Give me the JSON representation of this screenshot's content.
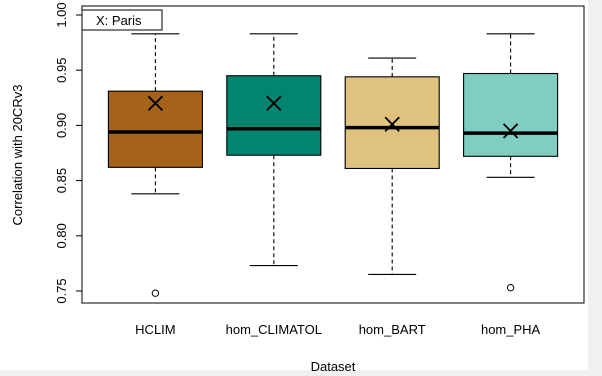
{
  "chart_data": {
    "type": "boxplot",
    "annotation": "X: Paris",
    "xlabel": "Dataset",
    "ylabel": "Correlation with 20CRv3",
    "ylim": [
      0.745,
      1.0
    ],
    "yticks": [
      0.75,
      0.8,
      0.85,
      0.9,
      0.95,
      1.0
    ],
    "ytick_labels": [
      "0.75",
      "0.80",
      "0.85",
      "0.90",
      "0.95",
      "1.00"
    ],
    "categories": [
      "HCLIM",
      "hom_CLIMATOL",
      "hom_BART",
      "hom_PHA"
    ],
    "colors": [
      "#A6611A",
      "#018571",
      "#DFC27D",
      "#80CDC1"
    ],
    "boxes": [
      {
        "label": "HCLIM",
        "whisker_low": 0.838,
        "q1": 0.862,
        "median": 0.894,
        "q3": 0.931,
        "whisker_high": 0.983,
        "outliers": [
          0.748
        ],
        "marker_x": 0.92
      },
      {
        "label": "hom_CLIMATOL",
        "whisker_low": 0.773,
        "q1": 0.873,
        "median": 0.897,
        "q3": 0.945,
        "whisker_high": 0.983,
        "outliers": [],
        "marker_x": 0.92
      },
      {
        "label": "hom_BART",
        "whisker_low": 0.765,
        "q1": 0.861,
        "median": 0.898,
        "q3": 0.944,
        "whisker_high": 0.961,
        "outliers": [],
        "marker_x": 0.901
      },
      {
        "label": "hom_PHA",
        "whisker_low": 0.853,
        "q1": 0.872,
        "median": 0.893,
        "q3": 0.947,
        "whisker_high": 0.983,
        "outliers": [
          0.753
        ],
        "marker_x": 0.895
      }
    ],
    "grid": false,
    "legend": "top-left"
  }
}
